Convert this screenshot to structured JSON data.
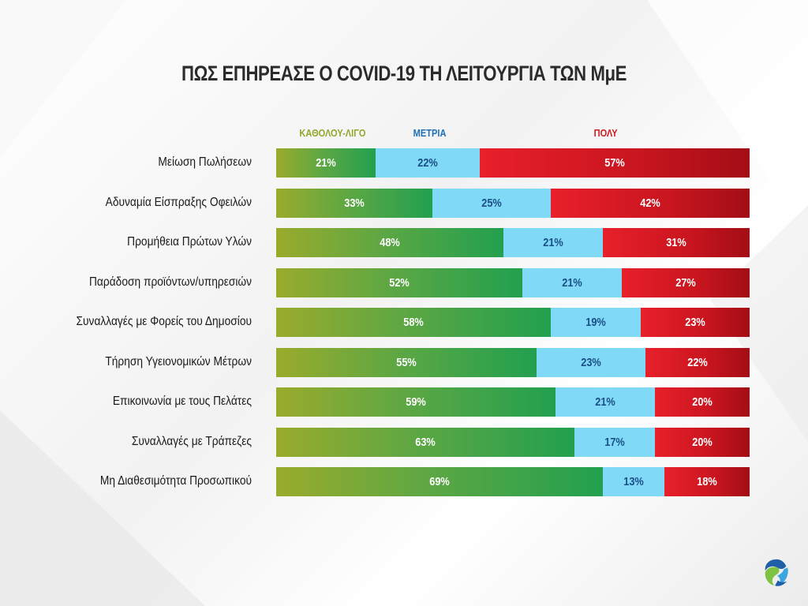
{
  "chart_data": {
    "type": "bar",
    "orientation": "horizontal",
    "stacked": true,
    "title": "ΠΩΣ ΕΠΗΡΕΑΣΕ Ο COVID-19 ΤΗ ΛΕΙΤΟΥΡΓΙΑ ΤΩΝ ΜμΕ",
    "xlabel": "",
    "ylabel": "",
    "xlim": [
      0,
      100
    ],
    "grid": false,
    "legend_position": "top",
    "categories": [
      "Μείωση Πωλήσεων",
      "Αδυναμία Είσπραξης Οφειλών",
      "Προμήθεια Πρώτων Υλών",
      "Παράδοση προϊόντων/υπηρεσιών",
      "Συναλλαγές με Φορείς του Δημοσίου",
      "Τήρηση Υγειονομικών Μέτρων",
      "Επικοινωνία με τους Πελάτες",
      "Συναλλαγές με Τράπεζες",
      "Μη Διαθεσιμότητα Προσωπικού"
    ],
    "series": [
      {
        "name": "ΚΑΘΟΛΟΥ-ΛΙΓΟ",
        "color": "#4ea64a",
        "values": [
          21,
          33,
          48,
          52,
          58,
          55,
          59,
          63,
          69
        ]
      },
      {
        "name": "ΜΕΤΡΙΑ",
        "color": "#7fd9f7",
        "values": [
          22,
          25,
          21,
          21,
          19,
          23,
          21,
          17,
          13
        ]
      },
      {
        "name": "ΠΟΛΥ",
        "color": "#d01a22",
        "values": [
          57,
          42,
          31,
          27,
          23,
          22,
          20,
          20,
          18
        ]
      }
    ]
  },
  "logo": {
    "icon": "company-logo-icon"
  }
}
